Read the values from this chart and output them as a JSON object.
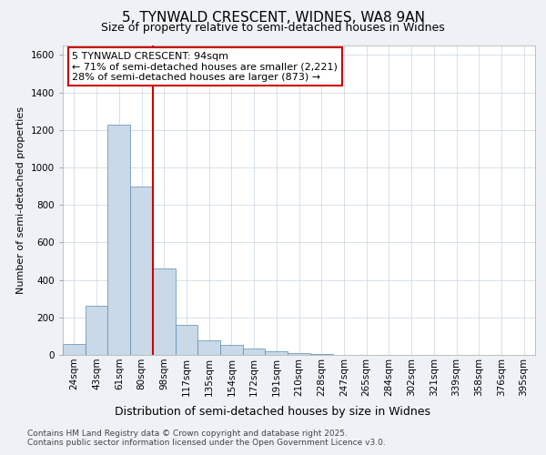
{
  "title_line1": "5, TYNWALD CRESCENT, WIDNES, WA8 9AN",
  "title_line2": "Size of property relative to semi-detached houses in Widnes",
  "xlabel": "Distribution of semi-detached houses by size in Widnes",
  "ylabel": "Number of semi-detached properties",
  "categories": [
    "24sqm",
    "43sqm",
    "61sqm",
    "80sqm",
    "98sqm",
    "117sqm",
    "135sqm",
    "154sqm",
    "172sqm",
    "191sqm",
    "210sqm",
    "228sqm",
    "247sqm",
    "265sqm",
    "284sqm",
    "302sqm",
    "321sqm",
    "339sqm",
    "358sqm",
    "376sqm",
    "395sqm"
  ],
  "values": [
    60,
    260,
    1230,
    900,
    460,
    160,
    80,
    55,
    35,
    20,
    10,
    5,
    2,
    1,
    0,
    0,
    0,
    0,
    0,
    0,
    0
  ],
  "bar_color": "#c9d9e8",
  "bar_edge_color": "#5a8ab0",
  "vline_color": "#cc0000",
  "annotation_text": "5 TYNWALD CRESCENT: 94sqm\n← 71% of semi-detached houses are smaller (2,221)\n28% of semi-detached houses are larger (873) →",
  "annotation_box_color": "#cc0000",
  "ylim": [
    0,
    1650
  ],
  "yticks": [
    0,
    200,
    400,
    600,
    800,
    1000,
    1200,
    1400,
    1600
  ],
  "footer_line1": "Contains HM Land Registry data © Crown copyright and database right 2025.",
  "footer_line2": "Contains public sector information licensed under the Open Government Licence v3.0.",
  "background_color": "#eef2f7",
  "plot_background_color": "#ffffff",
  "grid_color": "#c8d4e0",
  "title1_fontsize": 11,
  "title2_fontsize": 9,
  "ylabel_fontsize": 8,
  "xlabel_fontsize": 9,
  "tick_fontsize": 7.5,
  "footer_fontsize": 6.5,
  "ann_fontsize": 8
}
